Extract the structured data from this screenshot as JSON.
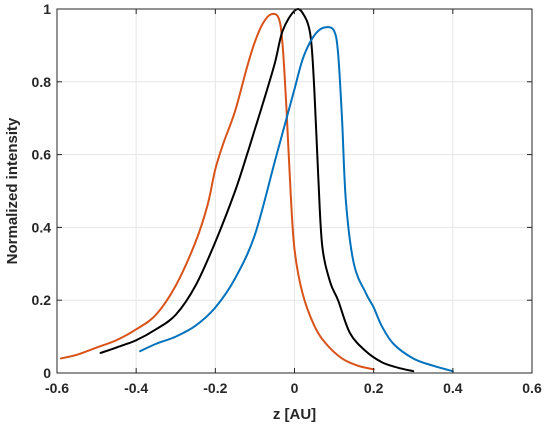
{
  "chart_data": {
    "type": "line",
    "title": "",
    "xlabel": "z [AU]",
    "ylabel": "Normalized intensity",
    "xlim": [
      -0.6,
      0.6
    ],
    "ylim": [
      0,
      1
    ],
    "xticks": [
      -0.6,
      -0.4,
      -0.2,
      0,
      0.2,
      0.4,
      0.6
    ],
    "xtick_labels": [
      "-0.6",
      "-0.4",
      "-0.2",
      "0",
      "0.2",
      "0.4",
      "0.6"
    ],
    "yticks": [
      0,
      0.2,
      0.4,
      0.6,
      0.8,
      1
    ],
    "ytick_labels": [
      "0",
      "0.2",
      "0.4",
      "0.6",
      "0.8",
      "1"
    ],
    "grid": true,
    "legend": "none",
    "series": [
      {
        "color": "#D95319",
        "points": [
          [
            -0.59,
            0.04
          ],
          [
            -0.55,
            0.05
          ],
          [
            -0.5,
            0.07
          ],
          [
            -0.45,
            0.09
          ],
          [
            -0.4,
            0.12
          ],
          [
            -0.35,
            0.16
          ],
          [
            -0.3,
            0.24
          ],
          [
            -0.25,
            0.36
          ],
          [
            -0.22,
            0.46
          ],
          [
            -0.2,
            0.56
          ],
          [
            -0.18,
            0.63
          ],
          [
            -0.15,
            0.72
          ],
          [
            -0.12,
            0.84
          ],
          [
            -0.1,
            0.91
          ],
          [
            -0.08,
            0.96
          ],
          [
            -0.06,
            0.985
          ],
          [
            -0.04,
            0.975
          ],
          [
            -0.03,
            0.9
          ],
          [
            -0.02,
            0.72
          ],
          [
            -0.01,
            0.5
          ],
          [
            0.0,
            0.34
          ],
          [
            0.02,
            0.22
          ],
          [
            0.05,
            0.13
          ],
          [
            0.08,
            0.08
          ],
          [
            0.12,
            0.04
          ],
          [
            0.16,
            0.02
          ],
          [
            0.2,
            0.01
          ]
        ]
      },
      {
        "color": "#000000",
        "points": [
          [
            -0.49,
            0.055
          ],
          [
            -0.45,
            0.07
          ],
          [
            -0.4,
            0.09
          ],
          [
            -0.35,
            0.12
          ],
          [
            -0.3,
            0.16
          ],
          [
            -0.25,
            0.24
          ],
          [
            -0.2,
            0.36
          ],
          [
            -0.15,
            0.5
          ],
          [
            -0.12,
            0.6
          ],
          [
            -0.1,
            0.67
          ],
          [
            -0.08,
            0.74
          ],
          [
            -0.05,
            0.85
          ],
          [
            -0.03,
            0.94
          ],
          [
            0.0,
            0.995
          ],
          [
            0.02,
            0.99
          ],
          [
            0.04,
            0.93
          ],
          [
            0.05,
            0.78
          ],
          [
            0.06,
            0.54
          ],
          [
            0.07,
            0.35
          ],
          [
            0.09,
            0.25
          ],
          [
            0.11,
            0.2
          ],
          [
            0.14,
            0.11
          ],
          [
            0.18,
            0.06
          ],
          [
            0.22,
            0.03
          ],
          [
            0.26,
            0.015
          ],
          [
            0.3,
            0.005
          ]
        ]
      },
      {
        "color": "#0072BD",
        "points": [
          [
            -0.39,
            0.06
          ],
          [
            -0.35,
            0.08
          ],
          [
            -0.3,
            0.1
          ],
          [
            -0.25,
            0.13
          ],
          [
            -0.2,
            0.18
          ],
          [
            -0.15,
            0.26
          ],
          [
            -0.1,
            0.38
          ],
          [
            -0.05,
            0.58
          ],
          [
            -0.02,
            0.7
          ],
          [
            0.0,
            0.78
          ],
          [
            0.02,
            0.86
          ],
          [
            0.04,
            0.91
          ],
          [
            0.06,
            0.94
          ],
          [
            0.08,
            0.95
          ],
          [
            0.1,
            0.94
          ],
          [
            0.11,
            0.88
          ],
          [
            0.12,
            0.7
          ],
          [
            0.13,
            0.47
          ],
          [
            0.15,
            0.3
          ],
          [
            0.18,
            0.22
          ],
          [
            0.2,
            0.18
          ],
          [
            0.22,
            0.13
          ],
          [
            0.25,
            0.08
          ],
          [
            0.3,
            0.04
          ],
          [
            0.35,
            0.02
          ],
          [
            0.4,
            0.005
          ]
        ]
      }
    ]
  }
}
